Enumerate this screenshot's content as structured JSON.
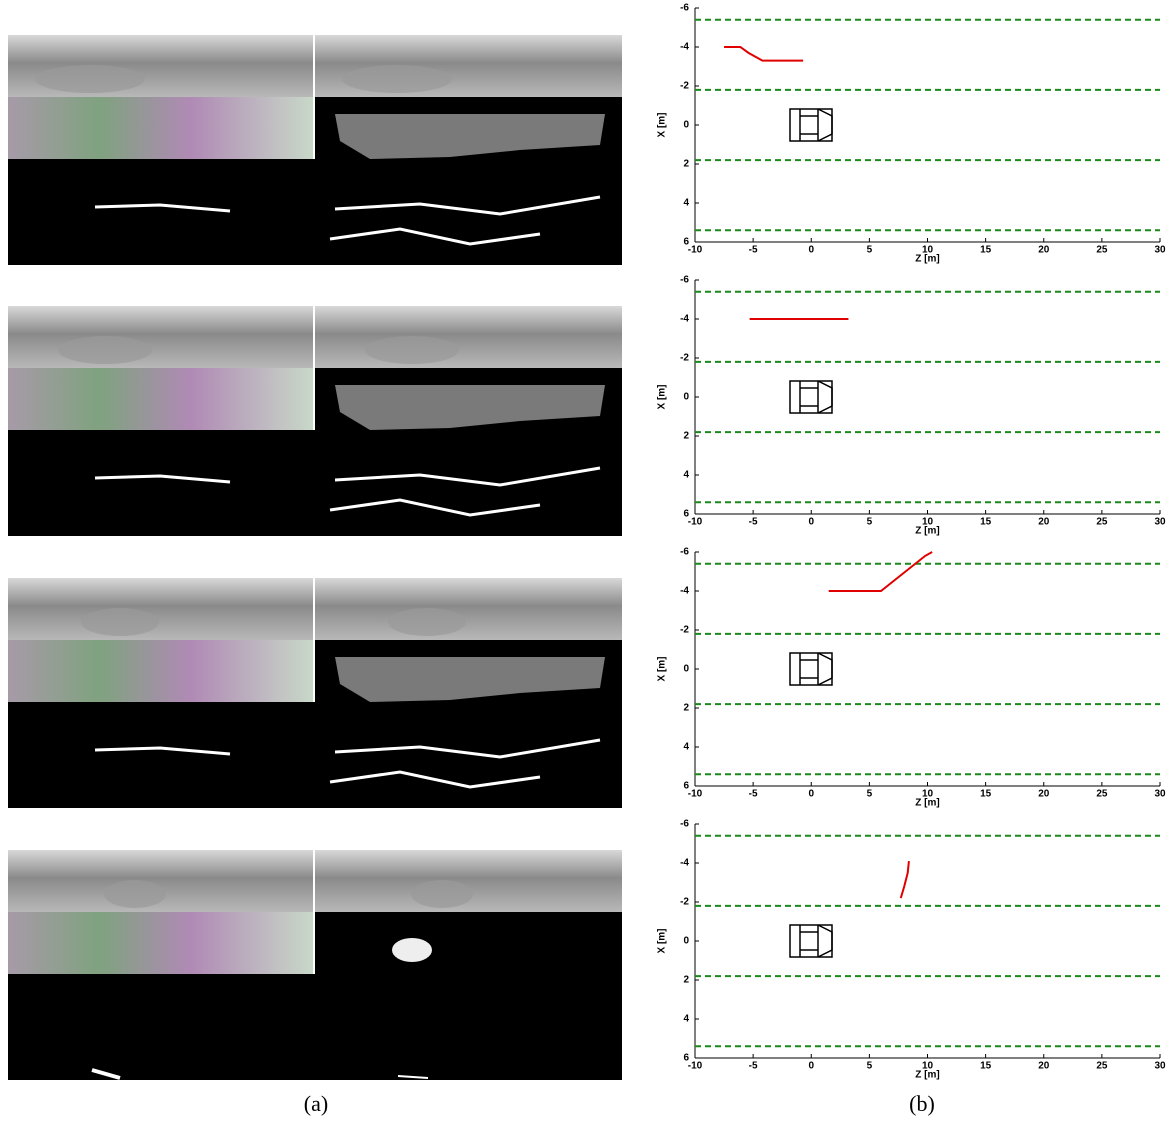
{
  "captions": [
    "(a)",
    "(b)"
  ],
  "chart_data": [
    {
      "type": "line",
      "xlabel": "Z [m]",
      "ylabel": "X [m]",
      "xlim": [
        -10,
        30
      ],
      "ylim": [
        -6,
        6
      ],
      "y_inverted": true,
      "xticks": [
        -10,
        -5,
        0,
        5,
        10,
        15,
        20,
        25,
        30
      ],
      "yticks": [
        -6,
        -4,
        -2,
        0,
        2,
        4,
        6
      ],
      "series": [
        {
          "color": "#1a8a1a",
          "linestyle": "--",
          "x": [
            -10,
            30
          ],
          "values": [
            -5.4,
            -5.4
          ]
        },
        {
          "color": "#1a8a1a",
          "linestyle": "--",
          "x": [
            -10,
            30
          ],
          "values": [
            -1.8,
            -1.8
          ]
        },
        {
          "color": "#1a8a1a",
          "linestyle": "--",
          "x": [
            -10,
            30
          ],
          "values": [
            1.8,
            1.8
          ]
        },
        {
          "color": "#1a8a1a",
          "linestyle": "--",
          "x": [
            -10,
            30
          ],
          "values": [
            5.4,
            5.4
          ]
        },
        {
          "color": "#e00000",
          "linestyle": "-",
          "x": [
            -7.5,
            -6.1,
            -5.4,
            -4.8,
            -4.2,
            -0.7
          ],
          "values": [
            -4.0,
            -4.0,
            -3.7,
            -3.5,
            -3.3,
            -3.3
          ]
        }
      ]
    },
    {
      "type": "line",
      "xlabel": "Z [m]",
      "ylabel": "X [m]",
      "xlim": [
        -10,
        30
      ],
      "ylim": [
        -6,
        6
      ],
      "y_inverted": true,
      "xticks": [
        -10,
        -5,
        0,
        5,
        10,
        15,
        20,
        25,
        30
      ],
      "yticks": [
        -6,
        -4,
        -2,
        0,
        2,
        4,
        6
      ],
      "series": [
        {
          "color": "#1a8a1a",
          "linestyle": "--",
          "x": [
            -10,
            30
          ],
          "values": [
            -5.4,
            -5.4
          ]
        },
        {
          "color": "#1a8a1a",
          "linestyle": "--",
          "x": [
            -10,
            30
          ],
          "values": [
            -1.8,
            -1.8
          ]
        },
        {
          "color": "#1a8a1a",
          "linestyle": "--",
          "x": [
            -10,
            30
          ],
          "values": [
            1.8,
            1.8
          ]
        },
        {
          "color": "#1a8a1a",
          "linestyle": "--",
          "x": [
            -10,
            30
          ],
          "values": [
            5.4,
            5.4
          ]
        },
        {
          "color": "#e00000",
          "linestyle": "-",
          "x": [
            -5.3,
            3.2
          ],
          "values": [
            -4.0,
            -4.0
          ]
        }
      ]
    },
    {
      "type": "line",
      "xlabel": "Z [m]",
      "ylabel": "X [m]",
      "xlim": [
        -10,
        30
      ],
      "ylim": [
        -6,
        6
      ],
      "y_inverted": true,
      "xticks": [
        -10,
        -5,
        0,
        5,
        10,
        15,
        20,
        25,
        30
      ],
      "yticks": [
        -6,
        -4,
        -2,
        0,
        2,
        4,
        6
      ],
      "series": [
        {
          "color": "#1a8a1a",
          "linestyle": "--",
          "x": [
            -10,
            30
          ],
          "values": [
            -5.4,
            -5.4
          ]
        },
        {
          "color": "#1a8a1a",
          "linestyle": "--",
          "x": [
            -10,
            30
          ],
          "values": [
            -1.8,
            -1.8
          ]
        },
        {
          "color": "#1a8a1a",
          "linestyle": "--",
          "x": [
            -10,
            30
          ],
          "values": [
            1.8,
            1.8
          ]
        },
        {
          "color": "#1a8a1a",
          "linestyle": "--",
          "x": [
            -10,
            30
          ],
          "values": [
            5.4,
            5.4
          ]
        },
        {
          "color": "#e00000",
          "linestyle": "-",
          "x": [
            1.5,
            6.0,
            9.8,
            10.4
          ],
          "values": [
            -4.0,
            -4.0,
            -5.8,
            -6.0
          ]
        }
      ]
    },
    {
      "type": "line",
      "xlabel": "Z [m]",
      "ylabel": "X [m]",
      "xlim": [
        -10,
        30
      ],
      "ylim": [
        -6,
        6
      ],
      "y_inverted": true,
      "xticks": [
        -10,
        -5,
        0,
        5,
        10,
        15,
        20,
        25,
        30
      ],
      "yticks": [
        -6,
        -4,
        -2,
        0,
        2,
        4,
        6
      ],
      "series": [
        {
          "color": "#1a8a1a",
          "linestyle": "--",
          "x": [
            -10,
            30
          ],
          "values": [
            -5.4,
            -5.4
          ]
        },
        {
          "color": "#1a8a1a",
          "linestyle": "--",
          "x": [
            -10,
            30
          ],
          "values": [
            -1.8,
            -1.8
          ]
        },
        {
          "color": "#1a8a1a",
          "linestyle": "--",
          "x": [
            -10,
            30
          ],
          "values": [
            1.8,
            1.8
          ]
        },
        {
          "color": "#1a8a1a",
          "linestyle": "--",
          "x": [
            -10,
            30
          ],
          "values": [
            5.4,
            5.4
          ]
        },
        {
          "color": "#e00000",
          "linestyle": "-",
          "x": [
            7.7,
            8.0,
            8.3,
            8.4
          ],
          "values": [
            -2.2,
            -2.8,
            -3.5,
            -4.1
          ]
        }
      ]
    }
  ]
}
